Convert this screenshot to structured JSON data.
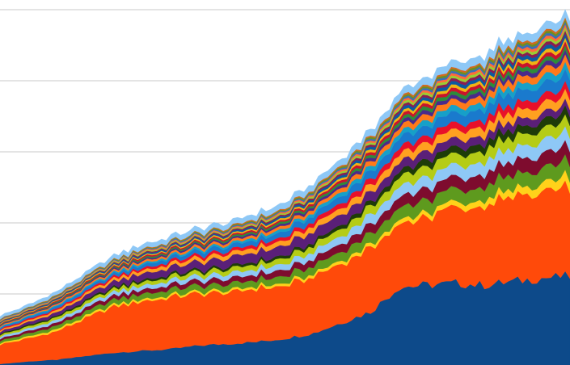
{
  "chart_data": {
    "type": "area",
    "stacked": true,
    "title": "",
    "xlabel": "",
    "ylabel": "",
    "grid": true,
    "legend": "none",
    "ylim": [
      0,
      100
    ],
    "yticks": [
      0,
      20,
      40,
      60,
      80,
      100
    ],
    "x": [
      0,
      5,
      10,
      15,
      20,
      25,
      30,
      35,
      40,
      45,
      50,
      55,
      60,
      65,
      70,
      75,
      80,
      85,
      90,
      95,
      100
    ],
    "series": [
      {
        "color": "#0D4A8A",
        "values": [
          0.3,
          1.0,
          1.5,
          2.5,
          3.5,
          4.0,
          4.5,
          5.5,
          6.0,
          6.5,
          7.5,
          9.0,
          12.0,
          15.0,
          22.0,
          22.5,
          23.0,
          22.5,
          23.5,
          24.5,
          25.0
        ]
      },
      {
        "color": "#FF4A0A",
        "values": [
          5.5,
          6.5,
          8.0,
          10.5,
          13.0,
          14.0,
          14.5,
          14.5,
          14.5,
          15.0,
          15.0,
          16.0,
          17.0,
          18.0,
          18.0,
          19.0,
          21.0,
          22.5,
          23.5,
          24.0,
          24.5
        ]
      },
      {
        "color": "#FFD21A",
        "values": [
          0.4,
          0.5,
          0.6,
          0.6,
          0.6,
          0.6,
          0.6,
          0.6,
          0.6,
          0.7,
          0.7,
          0.8,
          0.9,
          1.0,
          1.2,
          1.3,
          1.5,
          1.8,
          2.0,
          2.4,
          3.0
        ]
      },
      {
        "color": "#5E9A1E",
        "values": [
          0.7,
          0.8,
          1.0,
          1.2,
          1.4,
          1.5,
          1.6,
          1.7,
          1.7,
          1.8,
          2.0,
          2.2,
          2.5,
          3.0,
          3.4,
          3.6,
          3.6,
          3.8,
          4.0,
          4.2,
          4.5
        ]
      },
      {
        "color": "#7E0C2E",
        "values": [
          0.6,
          0.7,
          0.8,
          1.0,
          1.1,
          1.2,
          1.3,
          1.4,
          1.5,
          1.6,
          1.8,
          2.0,
          2.3,
          2.6,
          3.0,
          3.2,
          3.4,
          3.6,
          3.8,
          4.0,
          4.2
        ]
      },
      {
        "color": "#8EC8F6",
        "values": [
          0.6,
          0.7,
          0.8,
          0.9,
          1.0,
          1.1,
          1.2,
          1.3,
          1.4,
          1.5,
          1.7,
          1.9,
          2.2,
          2.6,
          3.0,
          3.2,
          3.4,
          3.5,
          3.6,
          3.8,
          4.0
        ]
      },
      {
        "color": "#B5CC16",
        "values": [
          0.5,
          0.6,
          0.7,
          0.8,
          0.9,
          1.0,
          1.1,
          1.2,
          1.3,
          1.4,
          1.6,
          1.8,
          2.1,
          2.4,
          2.7,
          2.9,
          3.0,
          3.1,
          3.2,
          3.3,
          3.4
        ]
      },
      {
        "color": "#1E3C08",
        "values": [
          0.3,
          0.4,
          0.4,
          0.5,
          0.5,
          0.6,
          0.6,
          0.6,
          0.7,
          0.7,
          0.8,
          0.9,
          1.1,
          1.3,
          1.6,
          1.8,
          2.0,
          2.1,
          2.2,
          2.3,
          2.4
        ]
      },
      {
        "color": "#5A1F78",
        "values": [
          0.6,
          0.8,
          1.0,
          1.2,
          1.5,
          1.8,
          2.0,
          2.2,
          2.4,
          2.6,
          2.8,
          3.0,
          3.0,
          2.8,
          2.6,
          2.5,
          2.4,
          2.3,
          2.2,
          2.1,
          2.0
        ]
      },
      {
        "color": "#FFA020",
        "values": [
          0.4,
          0.5,
          0.6,
          0.7,
          0.8,
          0.9,
          1.0,
          1.1,
          1.2,
          1.3,
          1.4,
          1.6,
          1.8,
          2.0,
          2.2,
          2.3,
          2.4,
          2.5,
          2.5,
          2.6,
          2.7
        ]
      },
      {
        "color": "#E8102A",
        "values": [
          0.3,
          0.4,
          0.4,
          0.5,
          0.6,
          0.6,
          0.7,
          0.8,
          0.8,
          0.9,
          1.0,
          1.2,
          1.4,
          1.6,
          1.8,
          1.9,
          2.0,
          2.1,
          2.2,
          2.2,
          2.3
        ]
      },
      {
        "color": "#1A7ACD",
        "values": [
          0.4,
          0.5,
          0.6,
          0.7,
          0.8,
          0.9,
          1.0,
          1.1,
          1.2,
          1.3,
          1.5,
          1.7,
          2.0,
          2.3,
          2.6,
          2.8,
          2.9,
          3.0,
          3.1,
          3.2,
          3.3
        ]
      },
      {
        "color": "#16A0C8",
        "values": [
          0.2,
          0.3,
          0.3,
          0.4,
          0.4,
          0.5,
          0.5,
          0.6,
          0.6,
          0.7,
          0.8,
          0.9,
          1.1,
          1.3,
          1.5,
          1.6,
          1.7,
          1.8,
          1.8,
          1.9,
          2.0
        ]
      },
      {
        "color": "#FF7A1A",
        "values": [
          0.3,
          0.3,
          0.4,
          0.5,
          0.5,
          0.6,
          0.6,
          0.7,
          0.7,
          0.8,
          0.9,
          1.0,
          1.2,
          1.4,
          1.6,
          1.7,
          1.8,
          1.9,
          1.9,
          2.0,
          2.1
        ]
      },
      {
        "color": "#4A2A8A",
        "values": [
          0.2,
          0.2,
          0.3,
          0.3,
          0.4,
          0.4,
          0.4,
          0.5,
          0.5,
          0.5,
          0.6,
          0.7,
          0.8,
          0.9,
          1.0,
          1.1,
          1.1,
          1.2,
          1.2,
          1.3,
          1.3
        ]
      },
      {
        "color": "#2E8B3A",
        "values": [
          0.2,
          0.2,
          0.3,
          0.3,
          0.3,
          0.4,
          0.4,
          0.4,
          0.5,
          0.5,
          0.6,
          0.6,
          0.7,
          0.8,
          0.9,
          1.0,
          1.0,
          1.1,
          1.1,
          1.2,
          1.2
        ]
      },
      {
        "color": "#C8142C",
        "values": [
          0.2,
          0.2,
          0.3,
          0.3,
          0.3,
          0.4,
          0.4,
          0.4,
          0.4,
          0.5,
          0.5,
          0.6,
          0.7,
          0.8,
          0.9,
          0.9,
          1.0,
          1.0,
          1.1,
          1.1,
          1.2
        ]
      },
      {
        "color": "#F0B414",
        "values": [
          0.2,
          0.2,
          0.2,
          0.3,
          0.3,
          0.3,
          0.3,
          0.4,
          0.4,
          0.4,
          0.5,
          0.5,
          0.6,
          0.7,
          0.8,
          0.8,
          0.9,
          0.9,
          1.0,
          1.0,
          1.0
        ]
      },
      {
        "color": "#0A5AA0",
        "values": [
          0.2,
          0.2,
          0.3,
          0.3,
          0.3,
          0.4,
          0.4,
          0.4,
          0.4,
          0.5,
          0.5,
          0.6,
          0.7,
          0.8,
          0.9,
          0.9,
          1.0,
          1.0,
          1.0,
          1.1,
          1.1
        ]
      },
      {
        "color": "#8A1E50",
        "values": [
          0.2,
          0.2,
          0.2,
          0.2,
          0.3,
          0.3,
          0.3,
          0.3,
          0.4,
          0.4,
          0.4,
          0.5,
          0.6,
          0.6,
          0.7,
          0.7,
          0.8,
          0.8,
          0.8,
          0.9,
          0.9
        ]
      },
      {
        "color": "#9ACD32",
        "values": [
          0.2,
          0.2,
          0.2,
          0.2,
          0.3,
          0.3,
          0.3,
          0.3,
          0.3,
          0.4,
          0.4,
          0.5,
          0.5,
          0.6,
          0.7,
          0.7,
          0.7,
          0.8,
          0.8,
          0.8,
          0.9
        ]
      },
      {
        "color": "#FF6A3A",
        "values": [
          0.2,
          0.2,
          0.2,
          0.2,
          0.2,
          0.3,
          0.3,
          0.3,
          0.3,
          0.3,
          0.4,
          0.4,
          0.5,
          0.5,
          0.6,
          0.6,
          0.7,
          0.7,
          0.7,
          0.8,
          0.8
        ]
      },
      {
        "color": "#3A6EB8",
        "values": [
          0.2,
          0.2,
          0.2,
          0.2,
          0.2,
          0.2,
          0.3,
          0.3,
          0.3,
          0.3,
          0.3,
          0.4,
          0.4,
          0.5,
          0.5,
          0.6,
          0.6,
          0.6,
          0.7,
          0.7,
          0.7
        ]
      },
      {
        "color": "#6B8E23",
        "values": [
          0.1,
          0.2,
          0.2,
          0.2,
          0.2,
          0.2,
          0.2,
          0.3,
          0.3,
          0.3,
          0.3,
          0.4,
          0.4,
          0.5,
          0.5,
          0.5,
          0.6,
          0.6,
          0.6,
          0.6,
          0.7
        ]
      },
      {
        "color": "#D2691E",
        "values": [
          0.1,
          0.1,
          0.2,
          0.2,
          0.2,
          0.2,
          0.2,
          0.2,
          0.3,
          0.3,
          0.3,
          0.3,
          0.4,
          0.4,
          0.5,
          0.5,
          0.5,
          0.5,
          0.6,
          0.6,
          0.6
        ]
      },
      {
        "color": "#8EC8F6",
        "values": [
          0.8,
          0.9,
          1.0,
          1.1,
          1.2,
          1.3,
          1.3,
          1.4,
          1.4,
          1.5,
          1.6,
          1.7,
          1.8,
          1.9,
          2.0,
          2.1,
          2.1,
          2.2,
          2.2,
          2.2,
          2.2
        ]
      }
    ]
  }
}
